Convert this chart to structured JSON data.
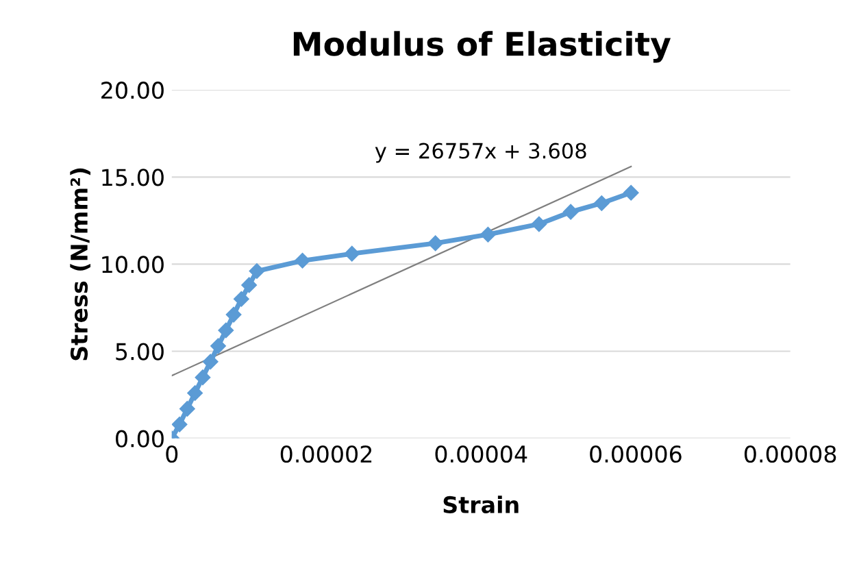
{
  "chart_data": {
    "type": "line",
    "title": "Modulus of Elasticity",
    "xlabel": "Strain",
    "ylabel": "Stress (N/mm²)",
    "series": [
      {
        "color": "#5b9bd5",
        "marker": "diamond",
        "x": [
          0,
          1e-06,
          2e-06,
          3e-06,
          4e-06,
          5e-06,
          6e-06,
          7e-06,
          8e-06,
          9e-06,
          1e-05,
          1.1e-05,
          1.69e-05,
          2.33e-05,
          3.41e-05,
          4.09e-05,
          4.75e-05,
          5.16e-05,
          5.56e-05,
          5.94e-05
        ],
        "values": [
          0,
          0.8,
          1.7,
          2.6,
          3.5,
          4.4,
          5.3,
          6.2,
          7.1,
          8.0,
          8.8,
          9.6,
          10.2,
          10.6,
          11.2,
          11.7,
          12.3,
          13.0,
          13.5,
          14.1
        ]
      },
      {
        "type": "line",
        "color": "#7f7f7f",
        "marker": "none",
        "x": [
          0,
          5.94e-05
        ],
        "values": [
          3.6,
          15.6
        ]
      }
    ],
    "annotations": [
      "y = 26757x + 3.608"
    ],
    "xlim": [
      0,
      8e-05
    ],
    "xticks": [
      {
        "value": 0,
        "label": "0"
      },
      {
        "value": 2e-05,
        "label": "0.00002"
      },
      {
        "value": 4e-05,
        "label": "0.00004"
      },
      {
        "value": 6e-05,
        "label": "0.00006"
      },
      {
        "value": 8e-05,
        "label": "0.00008"
      }
    ],
    "ylim": [
      0,
      20
    ],
    "yticks": [
      {
        "value": 0,
        "label": "0.00"
      },
      {
        "value": 5,
        "label": "5.00"
      },
      {
        "value": 10,
        "label": "10.00"
      },
      {
        "value": 15,
        "label": "15.00"
      },
      {
        "value": 20,
        "label": "20.00"
      }
    ],
    "grid": "y",
    "legend": false
  }
}
